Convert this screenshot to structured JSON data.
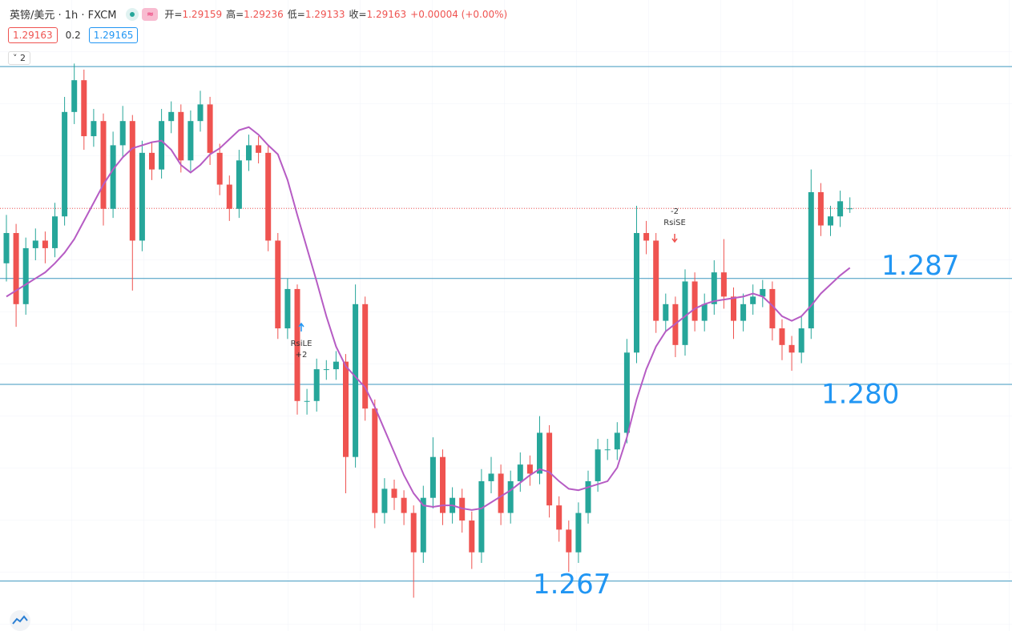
{
  "header": {
    "symbol": "英镑/美元 · 1h · FXCM",
    "ohlc": [
      {
        "label": "开=",
        "value": "1.29159"
      },
      {
        "label": "高=",
        "value": "1.29236"
      },
      {
        "label": "低=",
        "value": "1.29133"
      },
      {
        "label": "收=",
        "value": "1.29163"
      }
    ],
    "change": "+0.00004 (+0.00%)",
    "bid": "1.29163",
    "spread": "0.2",
    "ask": "1.29165",
    "indicator_count": "2"
  },
  "chart_data": {
    "type": "candlestick",
    "up_color": "#26a69a",
    "down_color": "#ef5350",
    "ylim": [
      1.2637,
      1.3054
    ],
    "open": [
      1.288,
      1.29,
      1.2853,
      1.289,
      1.2895,
      1.289,
      1.2911,
      1.298,
      1.3001,
      1.2964,
      1.2974,
      1.2916,
      1.2958,
      1.2974,
      1.2895,
      1.2953,
      1.2942,
      1.2974,
      1.298,
      1.2948,
      1.2974,
      1.2985,
      1.2953,
      1.2932,
      1.2916,
      1.2948,
      1.2958,
      1.2953,
      1.2895,
      1.2837,
      1.2863,
      1.2789,
      1.2789,
      1.281,
      1.281,
      1.2815,
      1.2752,
      1.2853,
      1.2784,
      1.2715,
      1.2731,
      1.2725,
      1.2715,
      1.2689,
      1.2725,
      1.2752,
      1.2715,
      1.2725,
      1.271,
      1.2689,
      1.2736,
      1.2741,
      1.2715,
      1.2736,
      1.2747,
      1.2741,
      1.2768,
      1.272,
      1.2704,
      1.2689,
      1.2715,
      1.2736,
      1.2757,
      1.2757,
      1.2768,
      1.2821,
      1.29,
      1.2895,
      1.2842,
      1.2853,
      1.2826,
      1.2868,
      1.2842,
      1.2853,
      1.2874,
      1.2858,
      1.2842,
      1.2853,
      1.2858,
      1.2863,
      1.2837,
      1.2826,
      1.2821,
      1.2837,
      1.2927,
      1.2905,
      1.2911,
      1.29159
    ],
    "high": [
      1.2912,
      1.2906,
      1.2897,
      1.2903,
      1.2901,
      1.292,
      1.299,
      1.3012,
      1.3008,
      1.2982,
      1.2979,
      1.2967,
      1.2984,
      1.2978,
      1.2961,
      1.296,
      1.2982,
      1.2987,
      1.2985,
      1.2981,
      1.2994,
      1.299,
      1.2959,
      1.2938,
      1.2955,
      1.2965,
      1.2964,
      1.2958,
      1.29,
      1.287,
      1.2866,
      1.2797,
      1.2817,
      1.2816,
      1.2822,
      1.282,
      1.2866,
      1.2858,
      1.279,
      1.2738,
      1.2737,
      1.273,
      1.272,
      1.2733,
      1.2765,
      1.2757,
      1.2732,
      1.2731,
      1.2716,
      1.2744,
      1.2752,
      1.2747,
      1.2743,
      1.2755,
      1.2753,
      1.2779,
      1.2773,
      1.2726,
      1.271,
      1.2722,
      1.2743,
      1.2764,
      1.2764,
      1.2775,
      1.283,
      1.2918,
      1.2908,
      1.29,
      1.286,
      1.2858,
      1.2876,
      1.2874,
      1.286,
      1.2882,
      1.2896,
      1.2864,
      1.286,
      1.2866,
      1.2869,
      1.2868,
      1.2843,
      1.2832,
      1.2845,
      1.2942,
      1.2933,
      1.2918,
      1.2928,
      1.29236
    ],
    "low": [
      1.2868,
      1.2838,
      1.2846,
      1.2882,
      1.288,
      1.2884,
      1.2905,
      1.2972,
      1.2955,
      1.2957,
      1.2905,
      1.291,
      1.295,
      1.2862,
      1.2888,
      1.2935,
      1.2936,
      1.2966,
      1.294,
      1.2941,
      1.2967,
      1.2945,
      1.2925,
      1.2908,
      1.291,
      1.2941,
      1.2946,
      1.2888,
      1.283,
      1.283,
      1.278,
      1.278,
      1.2782,
      1.2803,
      1.2803,
      1.2728,
      1.2745,
      1.2776,
      1.2705,
      1.2708,
      1.2717,
      1.2707,
      1.2659,
      1.2682,
      1.2718,
      1.2707,
      1.2708,
      1.2702,
      1.2678,
      1.2682,
      1.2728,
      1.2707,
      1.2708,
      1.2729,
      1.2733,
      1.2734,
      1.2712,
      1.2696,
      1.2676,
      1.2682,
      1.2708,
      1.2729,
      1.275,
      1.275,
      1.2761,
      1.2814,
      1.2886,
      1.2834,
      1.2835,
      1.2818,
      1.2819,
      1.2835,
      1.2835,
      1.2846,
      1.285,
      1.283,
      1.2835,
      1.2846,
      1.2851,
      1.2829,
      1.2816,
      1.2809,
      1.2814,
      1.283,
      1.2898,
      1.2898,
      1.2904,
      1.29133
    ],
    "close": [
      1.29,
      1.2853,
      1.289,
      1.2895,
      1.289,
      1.2911,
      1.298,
      1.3001,
      1.2964,
      1.2974,
      1.2916,
      1.2958,
      1.2974,
      1.2895,
      1.2953,
      1.2942,
      1.2974,
      1.298,
      1.2948,
      1.2974,
      1.2985,
      1.2953,
      1.2932,
      1.2916,
      1.2948,
      1.2958,
      1.2953,
      1.2895,
      1.2837,
      1.2863,
      1.2789,
      1.2789,
      1.281,
      1.281,
      1.2815,
      1.2752,
      1.2853,
      1.2784,
      1.2715,
      1.2731,
      1.2725,
      1.2715,
      1.2689,
      1.2725,
      1.2752,
      1.2715,
      1.2725,
      1.271,
      1.2689,
      1.2736,
      1.2741,
      1.2715,
      1.2736,
      1.2747,
      1.2741,
      1.2768,
      1.272,
      1.2704,
      1.2689,
      1.2715,
      1.2736,
      1.2757,
      1.2757,
      1.2768,
      1.2821,
      1.29,
      1.2895,
      1.2842,
      1.2853,
      1.2826,
      1.2868,
      1.2842,
      1.2853,
      1.2874,
      1.2858,
      1.2842,
      1.2853,
      1.2858,
      1.2863,
      1.2837,
      1.2826,
      1.2821,
      1.2837,
      1.2927,
      1.2905,
      1.2911,
      1.2921,
      1.29163
    ],
    "ma": {
      "color": "#b65cc4",
      "values": [
        1.2858,
        1.2862,
        1.2866,
        1.287,
        1.2874,
        1.288,
        1.2887,
        1.2896,
        1.2908,
        1.292,
        1.2932,
        1.2942,
        1.295,
        1.2956,
        1.2958,
        1.296,
        1.2961,
        1.2955,
        1.2945,
        1.294,
        1.2945,
        1.2952,
        1.2956,
        1.2962,
        1.2968,
        1.297,
        1.2965,
        1.2958,
        1.2952,
        1.2935,
        1.2912,
        1.289,
        1.2868,
        1.2845,
        1.2825,
        1.2812,
        1.2805,
        1.2798,
        1.2785,
        1.277,
        1.2755,
        1.274,
        1.2728,
        1.272,
        1.2719,
        1.272,
        1.272,
        1.2718,
        1.2717,
        1.2718,
        1.2722,
        1.2726,
        1.273,
        1.2735,
        1.274,
        1.2744,
        1.2742,
        1.2736,
        1.2731,
        1.273,
        1.2732,
        1.2734,
        1.2736,
        1.2745,
        1.2765,
        1.279,
        1.281,
        1.2825,
        1.2835,
        1.284,
        1.2845,
        1.285,
        1.2853,
        1.2855,
        1.2856,
        1.2857,
        1.2858,
        1.286,
        1.2858,
        1.2852,
        1.2845,
        1.2842,
        1.2845,
        1.2852,
        1.286,
        1.2866,
        1.2872,
        1.2877
      ]
    },
    "hlines": [
      1.301
    ],
    "levels": [
      1.287,
      {
        "value": 1.28,
        "label": "1.280"
      },
      1.267
    ],
    "level_color": "#3d97bf",
    "signals": [
      {
        "label": "RsiLE",
        "qty": "+2"
      },
      {
        "label": "RsiSE",
        "qty": "-2"
      }
    ]
  }
}
